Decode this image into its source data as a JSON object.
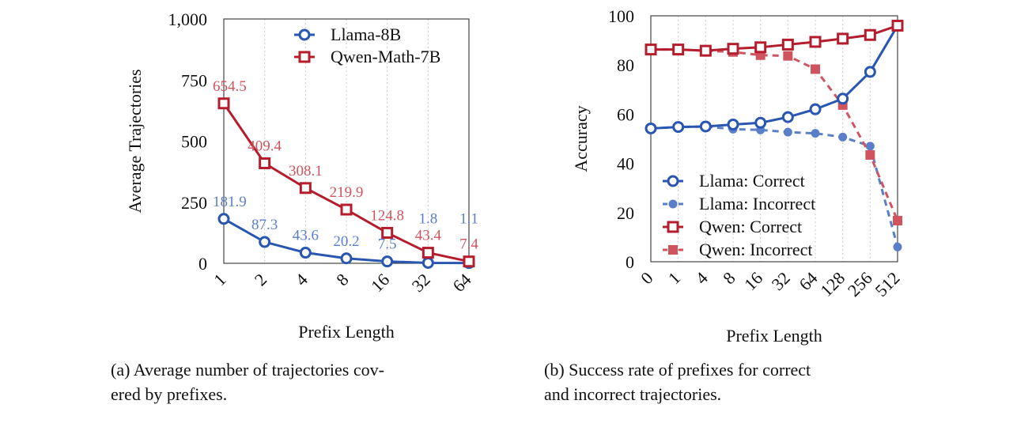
{
  "chart_data": [
    {
      "type": "line",
      "categories": [
        "1",
        "2",
        "4",
        "8",
        "16",
        "32",
        "64"
      ],
      "xlabel": "Prefix Length",
      "ylabel": "Average Trajectories",
      "ylim": [
        0,
        1000
      ],
      "yticks": [
        "0",
        "250",
        "500",
        "750",
        "1,000"
      ],
      "yticks_values": [
        0,
        250,
        500,
        750,
        1000
      ],
      "grid": "vertical dotted",
      "legend": "top-right",
      "series": [
        {
          "name": "Llama-8B",
          "values": [
            181.9,
            87.3,
            43.6,
            20.2,
            7.5,
            1.8,
            1.1
          ],
          "labels": [
            "181.9",
            "87.3",
            "43.6",
            "20.2",
            "7.5",
            "1.8",
            "1.1"
          ],
          "color": "#2856b0",
          "label_color": "#5a7fc8",
          "marker": "open-circle",
          "dash": false
        },
        {
          "name": "Qwen-Math-7B",
          "values": [
            654.5,
            409.4,
            308.1,
            219.9,
            124.8,
            43.4,
            7.4
          ],
          "labels": [
            "654.5",
            "409.4",
            "308.1",
            "219.9",
            "124.8",
            "43.4",
            "7.4"
          ],
          "color": "#b51d2c",
          "label_color": "#d0545f",
          "marker": "open-square",
          "dash": false
        }
      ]
    },
    {
      "type": "line",
      "categories": [
        "0",
        "1",
        "4",
        "8",
        "16",
        "32",
        "64",
        "128",
        "256",
        "512"
      ],
      "xlabel": "Prefix Length",
      "ylabel": "Accuracy",
      "ylim": [
        0,
        100
      ],
      "yticks": [
        "0",
        "20",
        "40",
        "60",
        "80",
        "100"
      ],
      "yticks_values": [
        0,
        20,
        40,
        60,
        80,
        100
      ],
      "grid": "vertical dotted",
      "legend": "bottom-left",
      "series": [
        {
          "name": "Llama: Correct",
          "values": [
            54.2,
            54.8,
            55,
            55.8,
            56.5,
            58.8,
            62,
            66.3,
            77.2,
            96
          ],
          "color": "#2856b0",
          "marker": "open-circle",
          "dash": false
        },
        {
          "name": "Llama: Incorrect",
          "values": [
            54.2,
            54.8,
            55,
            53.9,
            53.6,
            52.7,
            52.2,
            50.7,
            47,
            6
          ],
          "color": "#5a7fc8",
          "marker": "filled-circle",
          "dash": true
        },
        {
          "name": "Qwen: Correct",
          "values": [
            86.3,
            86.3,
            85.8,
            86.6,
            87.2,
            88.3,
            89.4,
            90.7,
            92.2,
            96
          ],
          "color": "#b51d2c",
          "marker": "open-square",
          "dash": false
        },
        {
          "name": "Qwen: Incorrect",
          "values": [
            86.3,
            86.3,
            85.8,
            85.3,
            84,
            83.7,
            78.3,
            63.7,
            43.4,
            16.7
          ],
          "color": "#d0545f",
          "marker": "filled-square",
          "dash": true
        }
      ]
    }
  ],
  "captions": {
    "a_line1": "(a)  Average number of trajectories cov-",
    "a_line2": "ered by prefixes.",
    "b_line1": "(b)  Success rate of prefixes for correct",
    "b_line2": "and incorrect trajectories."
  }
}
